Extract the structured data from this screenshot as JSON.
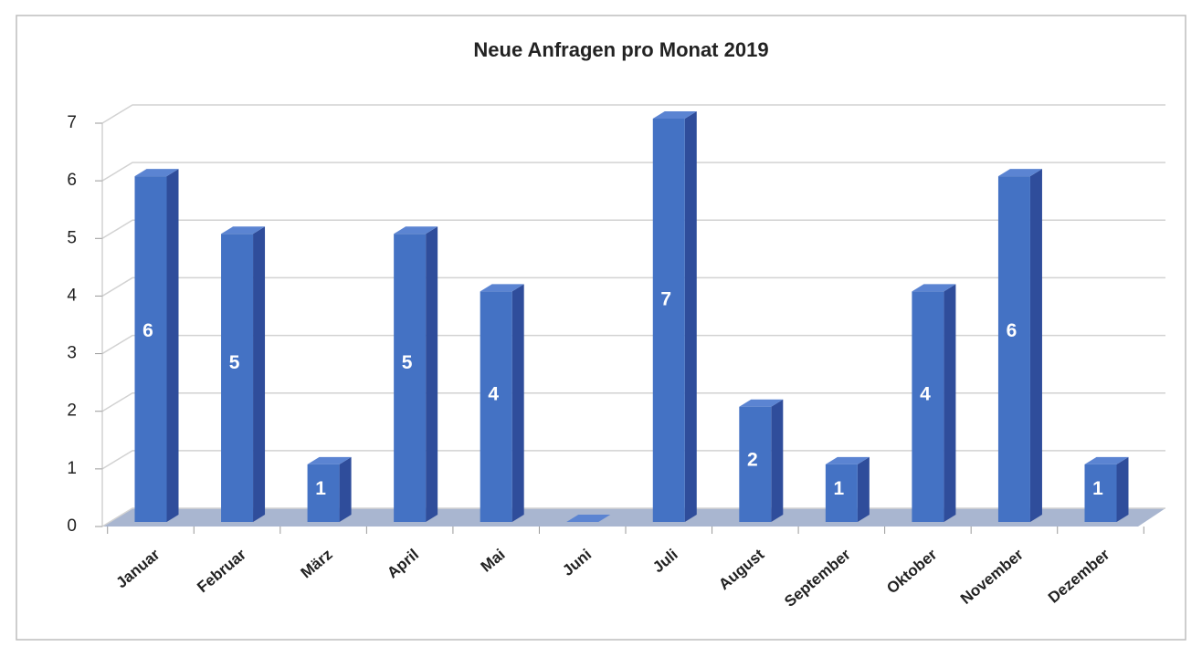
{
  "chart_data": {
    "type": "bar3d",
    "title": "Neue Anfragen pro Monat 2019",
    "categories": [
      "Januar",
      "Februar",
      "März",
      "April",
      "Mai",
      "Juni",
      "Juli",
      "August",
      "September",
      "Oktober",
      "November",
      "Dezember"
    ],
    "values": [
      6,
      5,
      1,
      5,
      4,
      0,
      7,
      2,
      1,
      4,
      6,
      1
    ],
    "value_labels": [
      "6",
      "5",
      "1",
      "5",
      "4",
      null,
      "7",
      "2",
      "1",
      "4",
      "6",
      "1"
    ],
    "color": "#4472c4",
    "ylim": [
      0,
      7
    ],
    "yticks": [
      0,
      1,
      2,
      3,
      4,
      5,
      6,
      7
    ],
    "grid": true
  }
}
